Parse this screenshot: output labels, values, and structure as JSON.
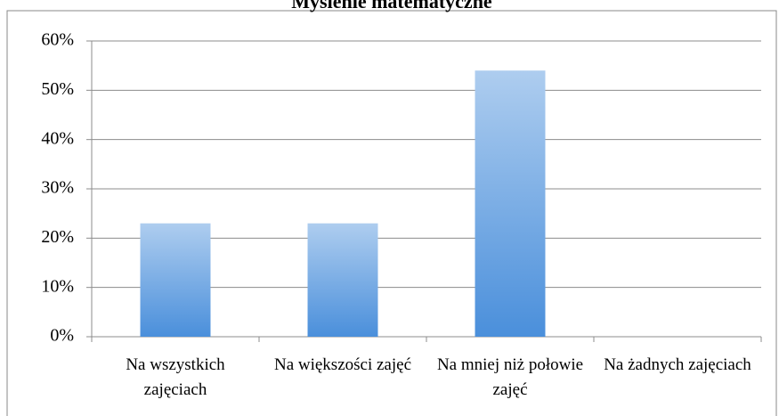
{
  "chart_data": {
    "type": "bar",
    "title": "Myślenie matematyczne",
    "categories": [
      "Na wszystkich zajęciach",
      "Na większości zajęć",
      "Na mniej niż połowie zajęć",
      "Na żadnych zajęciach"
    ],
    "values": [
      23,
      23,
      54,
      0
    ],
    "color": "#4a8fdb",
    "ylim": [
      0,
      60
    ],
    "yticks": [
      {
        "value": 0,
        "label": "0%"
      },
      {
        "value": 10,
        "label": "10%"
      },
      {
        "value": 20,
        "label": "20%"
      },
      {
        "value": 30,
        "label": "30%"
      },
      {
        "value": 40,
        "label": "40%"
      },
      {
        "value": 50,
        "label": "50%"
      },
      {
        "value": 60,
        "label": "60%"
      }
    ],
    "grid": true
  }
}
